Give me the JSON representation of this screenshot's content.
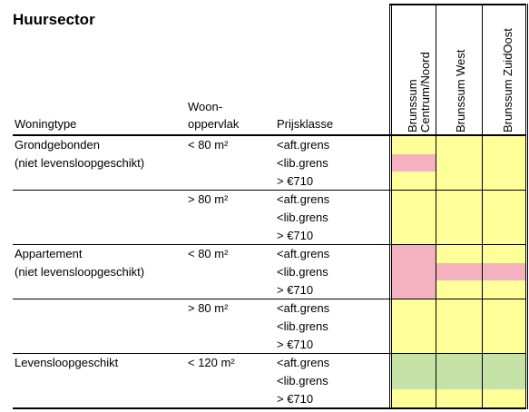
{
  "title": "Huursector",
  "headers": {
    "woningtype": "Woningtype",
    "oppervlak_line1": "Woon-",
    "oppervlak_line2": "oppervlak",
    "prijsklasse": "Prijsklasse"
  },
  "regions": {
    "r1_line1": "Brunssum",
    "r1_line2": "Centrum/Noord",
    "r2": "Brunssum West",
    "r3": "Brunssum ZuidOost"
  },
  "rows": [
    {
      "type1": "Grondgebonden",
      "type2": "(niet levensloopgeschikt)",
      "area": "< 80 m²",
      "p1": "<aft.grens",
      "p2": "<lib.grens",
      "p3": "> €710"
    },
    {
      "type1": "",
      "type2": "",
      "area": "> 80 m²",
      "p1": "<aft.grens",
      "p2": "<lib.grens",
      "p3": "> €710"
    },
    {
      "type1": "Appartement",
      "type2": "(niet levensloopgeschikt)",
      "area": "< 80 m²",
      "p1": "<aft.grens",
      "p2": "<lib.grens",
      "p3": "> €710"
    },
    {
      "type1": "",
      "type2": "",
      "area": "> 80 m²",
      "p1": "<aft.grens",
      "p2": "<lib.grens",
      "p3": "> €710"
    },
    {
      "type1": "Levensloopgeschikt",
      "type2": "",
      "area": "< 120 m²",
      "p1": "<aft.grens",
      "p2": "<lib.grens",
      "p3": "> €710"
    }
  ],
  "colors": {
    "yellow": "#ffff99",
    "pink": "#f4b1bf",
    "green": "#c6e3a7"
  }
}
